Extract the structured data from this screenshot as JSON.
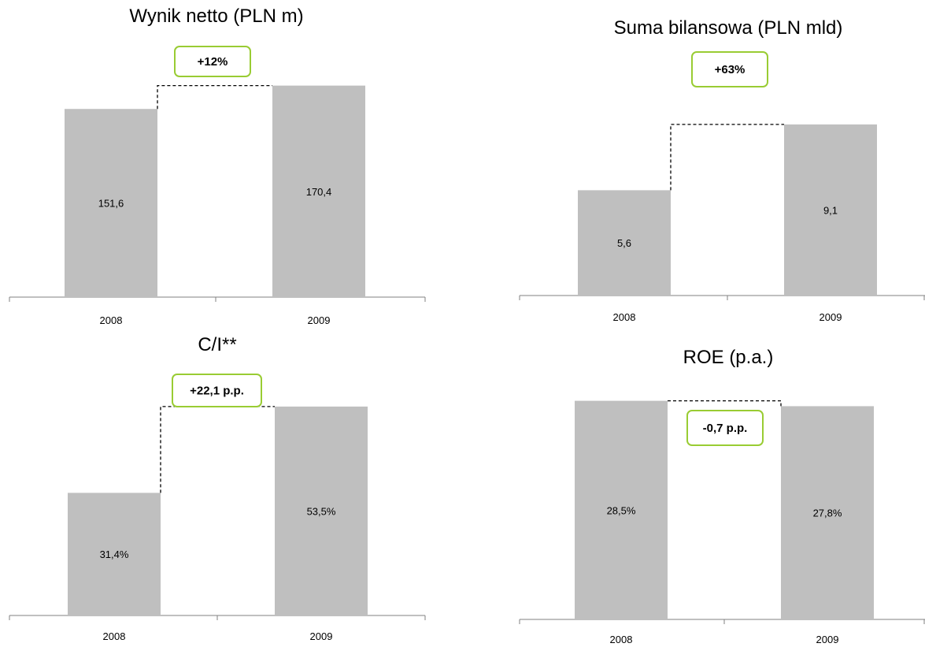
{
  "colors": {
    "bar": "#bfbfbf",
    "axis": "#808080",
    "badge_border": "#99cc33",
    "connector": "#000000",
    "text": "#000000"
  },
  "chart_data": [
    {
      "type": "bar",
      "title": "Wynik netto (PLN m)",
      "categories": [
        "2008",
        "2009"
      ],
      "values": [
        151.6,
        170.4
      ],
      "value_labels": [
        "151,6",
        "170,4"
      ],
      "change_label": "+12%",
      "ylim": [
        0,
        200
      ],
      "grid": false,
      "legend": "none"
    },
    {
      "type": "bar",
      "title": "Suma bilansowa (PLN mld)",
      "categories": [
        "2008",
        "2009"
      ],
      "values": [
        5.6,
        9.1
      ],
      "value_labels": [
        "5,6",
        "9,1"
      ],
      "change_label": "+63%",
      "ylim": [
        0,
        11.4
      ],
      "grid": false,
      "legend": "none"
    },
    {
      "type": "bar",
      "title": "C/I**",
      "categories": [
        "2008",
        "2009"
      ],
      "values": [
        31.4,
        53.5
      ],
      "value_labels": [
        "31,4%",
        "53,5%"
      ],
      "change_label": "+22,1 p.p.",
      "ylim": [
        0,
        67
      ],
      "grid": false,
      "legend": "none"
    },
    {
      "type": "bar",
      "title": "ROE (p.a.)",
      "categories": [
        "2008",
        "2009"
      ],
      "values": [
        28.5,
        27.8
      ],
      "value_labels": [
        "28,5%",
        "27,8%"
      ],
      "change_label": "-0,7 p.p.",
      "ylim": [
        0,
        30
      ],
      "grid": false,
      "legend": "none"
    }
  ]
}
